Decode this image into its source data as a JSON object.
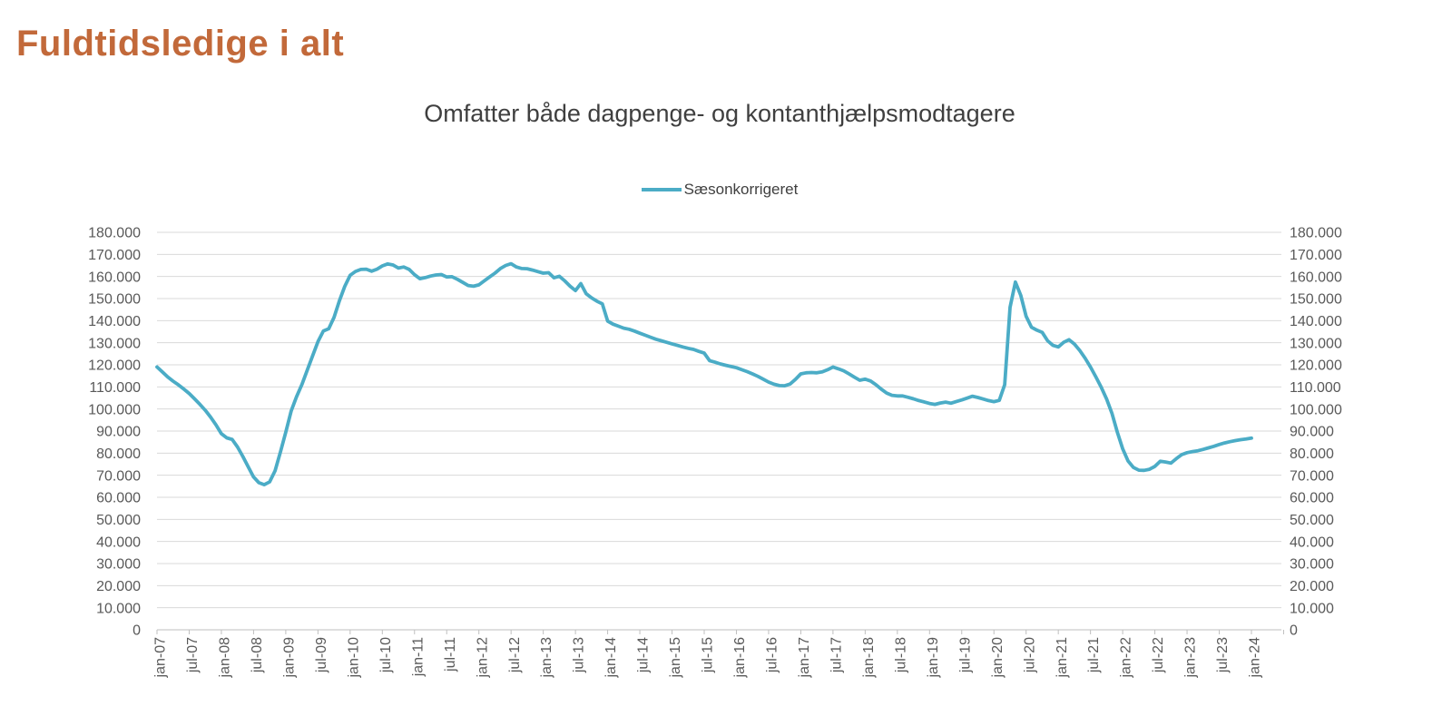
{
  "page": {
    "title": "Fuldtidsledige i alt"
  },
  "chart": {
    "subtitle": "Omfatter både dagpenge- og kontanthjælpsmodtagere",
    "legend": {
      "label": "Sæsonkorrigeret"
    },
    "colors": {
      "title": "#C2693A",
      "subtitle": "#3F3F3F",
      "line": "#4BACC6",
      "gridline": "#D9D9D9",
      "axis_line": "#BFBFBF",
      "axis_label": "#595959"
    }
  },
  "chart_data": {
    "type": "line",
    "title": "Omfatter både dagpenge- og kontanthjælpsmodtagere",
    "legend_position": "top",
    "grid": true,
    "y_axis": {
      "min": 0,
      "max": 180000,
      "step": 10000,
      "sides": [
        "left",
        "right"
      ],
      "tick_labels": [
        "0",
        "10.000",
        "20.000",
        "30.000",
        "40.000",
        "50.000",
        "60.000",
        "70.000",
        "80.000",
        "90.000",
        "100.000",
        "110.000",
        "120.000",
        "130.000",
        "140.000",
        "150.000",
        "160.000",
        "170.000",
        "180.000"
      ]
    },
    "x_axis": {
      "tick_interval_months": 6,
      "tick_labels": [
        "jan-07",
        "jul-07",
        "jan-08",
        "jul-08",
        "jan-09",
        "jul-09",
        "jan-10",
        "jul-10",
        "jan-11",
        "jul-11",
        "jan-12",
        "jul-12",
        "jan-13",
        "jul-13",
        "jan-14",
        "jul-14",
        "jan-15",
        "jul-15",
        "jan-16",
        "jul-16",
        "jan-17",
        "jul-17",
        "jan-18",
        "jul-18",
        "jan-19",
        "jul-19",
        "jan-20",
        "jul-20",
        "jan-21",
        "jul-21",
        "jan-22",
        "jul-22",
        "jan-23",
        "jul-23",
        "jan-24"
      ]
    },
    "series": [
      {
        "name": "Sæsonkorrigeret",
        "color": "#4BACC6",
        "frequency": "monthly",
        "start": "jan-07",
        "end": "jan-24",
        "values": [
          119000,
          116800,
          114500,
          112600,
          110900,
          109000,
          107000,
          104600,
          102100,
          99400,
          96300,
          92800,
          88800,
          86900,
          86200,
          82800,
          78500,
          73800,
          69200,
          66600,
          65700,
          67000,
          72000,
          80500,
          89500,
          99000,
          105500,
          111000,
          117500,
          124000,
          130500,
          135300,
          136300,
          141500,
          149000,
          155500,
          160500,
          162300,
          163200,
          163300,
          162400,
          163300,
          164800,
          165700,
          165200,
          163800,
          164300,
          163200,
          160800,
          159000,
          159500,
          160200,
          160700,
          160900,
          159800,
          159900,
          158700,
          157300,
          155900,
          155600,
          156200,
          158000,
          159800,
          161500,
          163600,
          165000,
          165800,
          164300,
          163600,
          163500,
          162900,
          162200,
          161500,
          161700,
          159400,
          160100,
          158000,
          155600,
          153600,
          156800,
          152200,
          150300,
          148800,
          147600,
          139800,
          138400,
          137500,
          136600,
          136100,
          135300,
          134300,
          133400,
          132500,
          131600,
          130900,
          130200,
          129500,
          128800,
          128100,
          127500,
          127000,
          126100,
          125300,
          121900,
          121200,
          120400,
          119800,
          119200,
          118700,
          117800,
          116900,
          115900,
          114800,
          113500,
          112200,
          111200,
          110600,
          110500,
          111300,
          113400,
          115900,
          116400,
          116500,
          116400,
          116800,
          117800,
          119000,
          118200,
          117300,
          115900,
          114400,
          113000,
          113500,
          112700,
          111000,
          109000,
          107200,
          106200,
          105900,
          105900,
          105300,
          104600,
          103800,
          103200,
          102500,
          102100,
          102700,
          103100,
          102600,
          103400,
          104100,
          104900,
          105800,
          105200,
          104500,
          103800,
          103300,
          103900,
          111000,
          146000,
          157500,
          151500,
          142000,
          137000,
          135700,
          134700,
          130900,
          128800,
          128100,
          130200,
          131400,
          129400,
          126500,
          123000,
          119000,
          114500,
          109800,
          104500,
          98000,
          89500,
          82000,
          76500,
          73500,
          72300,
          72200,
          72700,
          74000,
          76300,
          76000,
          75500,
          77500,
          79300,
          80200,
          80700,
          81100,
          81700,
          82400,
          83100,
          83900,
          84600,
          85200,
          85700,
          86100,
          86400,
          86800
        ]
      }
    ]
  }
}
